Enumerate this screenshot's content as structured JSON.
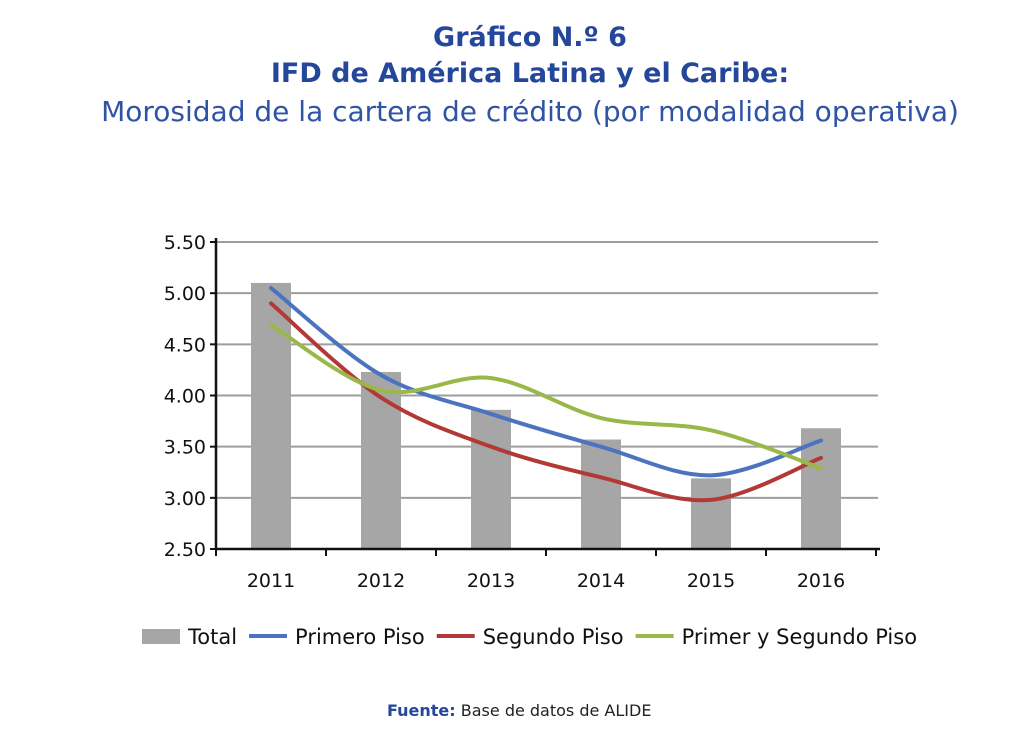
{
  "header": {
    "title_line1": "Gráfico N.º 6",
    "title_line2": "IFD de América Latina y el Caribe:",
    "subtitle": "Morosidad de la cartera de crédito (por modalidad operativa)"
  },
  "source": {
    "label": "Fuente:",
    "text": "Base de datos de ALIDE"
  },
  "chart_data": {
    "type": "bar",
    "categories": [
      "2011",
      "2012",
      "2013",
      "2014",
      "2015",
      "2016"
    ],
    "ylim": [
      2.5,
      5.5
    ],
    "yticks": [
      "2.50",
      "3.00",
      "3.50",
      "4.00",
      "4.50",
      "5.00",
      "5.50"
    ],
    "ytick_values": [
      2.5,
      3.0,
      3.5,
      4.0,
      4.5,
      5.0,
      5.5
    ],
    "grid": true,
    "legend_position": "bottom",
    "bars": {
      "name": "Total",
      "values": [
        5.1,
        4.23,
        3.86,
        3.57,
        3.19,
        3.68
      ],
      "color": "#a6a6a6"
    },
    "series": [
      {
        "name": "Primero Piso",
        "type": "line",
        "values": [
          5.05,
          4.2,
          3.82,
          3.5,
          3.22,
          3.56
        ],
        "color": "#4a74bf"
      },
      {
        "name": "Segundo Piso",
        "type": "line",
        "values": [
          4.9,
          3.98,
          3.5,
          3.2,
          2.98,
          3.39
        ],
        "color": "#b23a36"
      },
      {
        "name": "Primer y Segundo Piso",
        "type": "line",
        "values": [
          4.69,
          4.05,
          4.17,
          3.78,
          3.66,
          3.29
        ],
        "color": "#9ab84a"
      }
    ]
  }
}
